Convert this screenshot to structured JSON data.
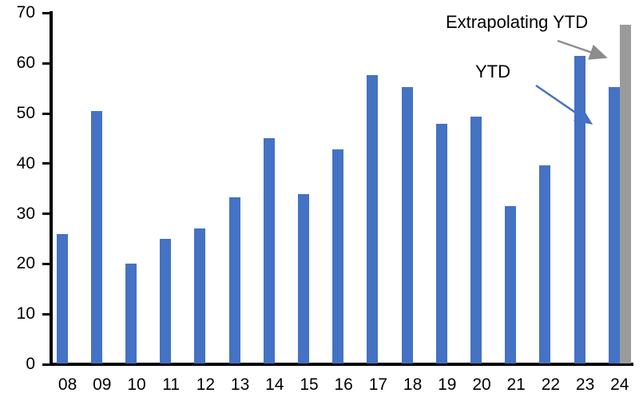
{
  "chart_data": {
    "type": "bar",
    "title": "",
    "xlabel": "",
    "ylabel": "",
    "categories": [
      "08",
      "09",
      "10",
      "11",
      "12",
      "13",
      "14",
      "15",
      "16",
      "17",
      "18",
      "19",
      "20",
      "21",
      "22",
      "23",
      "24"
    ],
    "series": [
      {
        "name": "YTD",
        "color": "#4472C4",
        "values": [
          26,
          50.5,
          20,
          25,
          27,
          33.3,
          45,
          33.9,
          42.8,
          57.7,
          55.3,
          48,
          49.4,
          31.5,
          39.6,
          61.5,
          55.3
        ]
      },
      {
        "name": "Extrapolating YTD",
        "color": "#9B9B9B",
        "values": [
          null,
          null,
          null,
          null,
          null,
          null,
          null,
          null,
          null,
          null,
          null,
          null,
          null,
          null,
          null,
          null,
          67.7
        ]
      }
    ],
    "ylim": [
      0,
      70
    ],
    "ytick_step": 10,
    "yticks": [
      "0",
      "10",
      "20",
      "30",
      "40",
      "50",
      "60",
      "70"
    ],
    "grid": "off",
    "legend": "none",
    "annotations": [
      {
        "text": "Extrapolating YTD",
        "arrow_color": "#8C8C8C",
        "points_to": "gray extrapolated bar for 24"
      },
      {
        "text": "YTD",
        "arrow_color": "#4472C4",
        "points_to": "blue YTD bar for 24"
      }
    ]
  },
  "colors": {
    "bar_blue": "#4472C4",
    "bar_gray": "#9B9B9B",
    "axis": "#000000"
  }
}
